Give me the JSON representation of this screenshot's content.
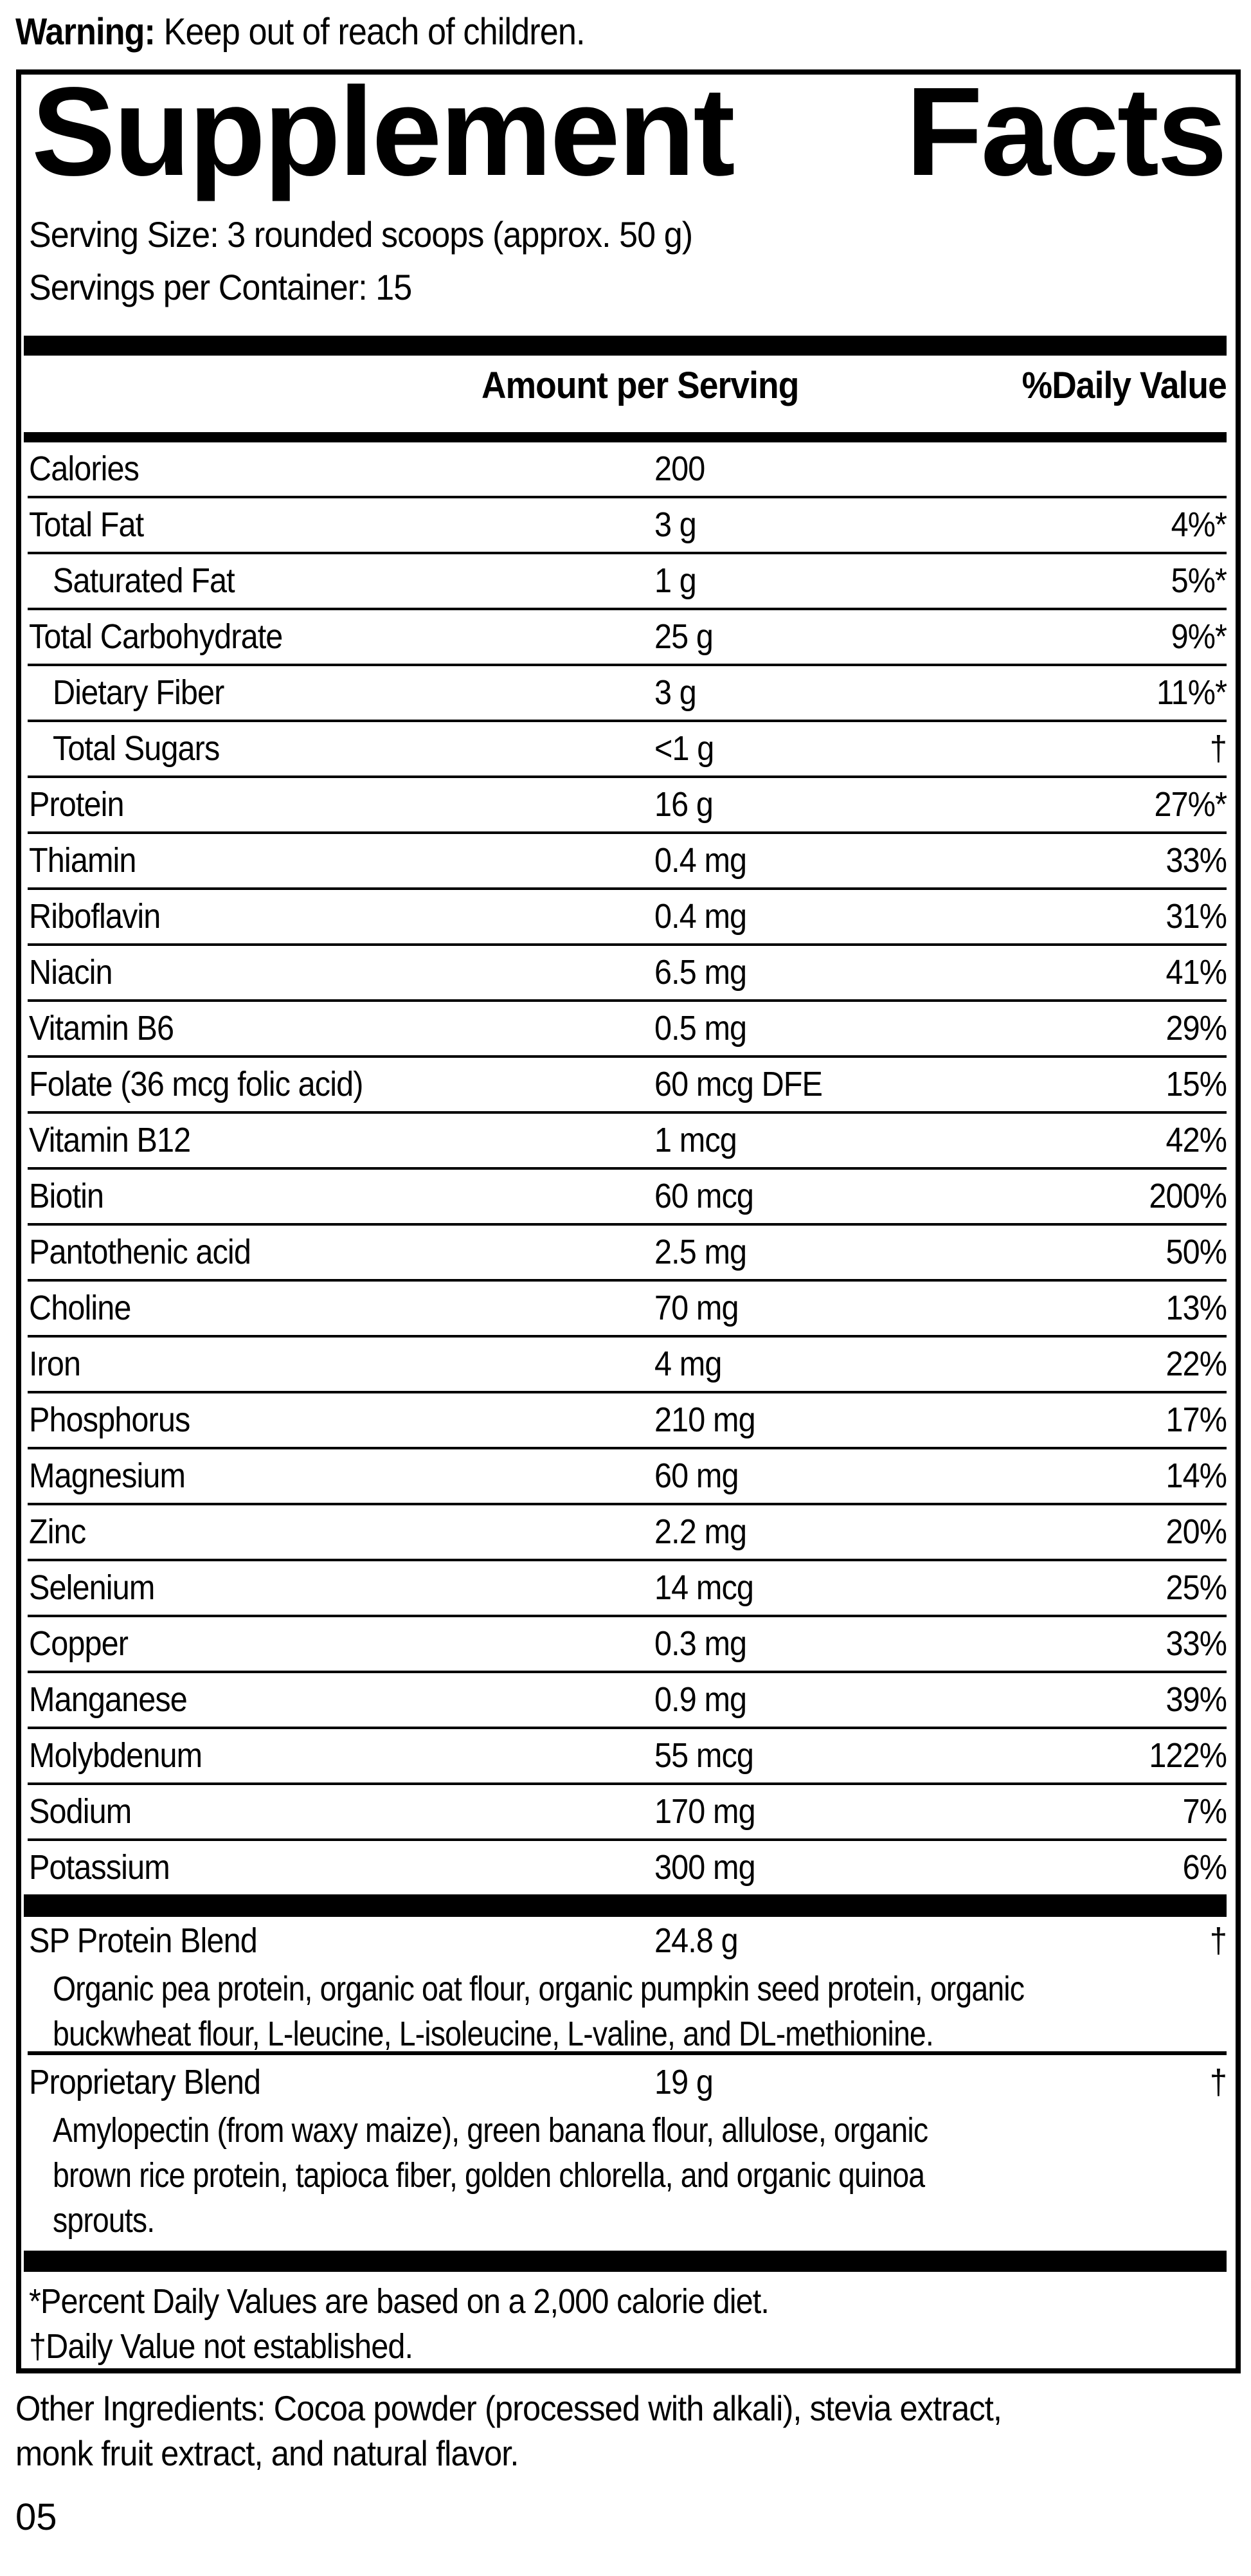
{
  "colors": {
    "text": "#000000",
    "background": "#ffffff"
  },
  "warning": {
    "label": "Warning:",
    "text": " Keep out of reach of children."
  },
  "panel": {
    "title_words": [
      "Supplement",
      "Facts"
    ],
    "serving_size": "Serving Size: 3 rounded scoops (approx. 50 g)",
    "servings_per_container": "Servings per Container: 15",
    "columns": {
      "amount": "Amount per Serving",
      "dv": "%Daily Value"
    },
    "rows": [
      {
        "name": "Calories",
        "amount": "200",
        "dv": "",
        "indent": false
      },
      {
        "name": "Total Fat",
        "amount": "3 g",
        "dv": "4%*",
        "indent": false
      },
      {
        "name": "Saturated Fat",
        "amount": "1 g",
        "dv": "5%*",
        "indent": true
      },
      {
        "name": "Total Carbohydrate",
        "amount": "25 g",
        "dv": "9%*",
        "indent": false
      },
      {
        "name": "Dietary Fiber",
        "amount": "3 g",
        "dv": "11%*",
        "indent": true
      },
      {
        "name": "Total Sugars",
        "amount": "<1 g",
        "dv": "†",
        "indent": true
      },
      {
        "name": "Protein",
        "amount": "16 g",
        "dv": "27%*",
        "indent": false
      },
      {
        "name": "Thiamin",
        "amount": "0.4 mg",
        "dv": "33%",
        "indent": false
      },
      {
        "name": "Riboflavin",
        "amount": "0.4 mg",
        "dv": "31%",
        "indent": false
      },
      {
        "name": "Niacin",
        "amount": "6.5 mg",
        "dv": "41%",
        "indent": false
      },
      {
        "name": "Vitamin B6",
        "amount": "0.5 mg",
        "dv": "29%",
        "indent": false
      },
      {
        "name": "Folate (36 mcg folic acid)",
        "amount": "60 mcg DFE",
        "dv": "15%",
        "indent": false
      },
      {
        "name": "Vitamin B12",
        "amount": "1 mcg",
        "dv": "42%",
        "indent": false
      },
      {
        "name": "Biotin",
        "amount": "60 mcg",
        "dv": "200%",
        "indent": false
      },
      {
        "name": "Pantothenic acid",
        "amount": "2.5 mg",
        "dv": "50%",
        "indent": false
      },
      {
        "name": "Choline",
        "amount": "70 mg",
        "dv": "13%",
        "indent": false
      },
      {
        "name": "Iron",
        "amount": "4 mg",
        "dv": "22%",
        "indent": false
      },
      {
        "name": "Phosphorus",
        "amount": "210 mg",
        "dv": "17%",
        "indent": false
      },
      {
        "name": "Magnesium",
        "amount": "60 mg",
        "dv": "14%",
        "indent": false
      },
      {
        "name": "Zinc",
        "amount": "2.2 mg",
        "dv": "20%",
        "indent": false
      },
      {
        "name": "Selenium",
        "amount": "14 mcg",
        "dv": "25%",
        "indent": false
      },
      {
        "name": "Copper",
        "amount": "0.3 mg",
        "dv": "33%",
        "indent": false
      },
      {
        "name": "Manganese",
        "amount": "0.9 mg",
        "dv": "39%",
        "indent": false
      },
      {
        "name": "Molybdenum",
        "amount": "55 mcg",
        "dv": "122%",
        "indent": false
      },
      {
        "name": "Sodium",
        "amount": "170 mg",
        "dv": "7%",
        "indent": false
      },
      {
        "name": "Potassium",
        "amount": "300 mg",
        "dv": "6%",
        "indent": false
      }
    ],
    "blends": [
      {
        "name": "SP Protein Blend",
        "amount": "24.8 g",
        "dv": "†",
        "lines": [
          "Organic pea protein, organic oat flour, organic pumpkin seed protein, organic",
          "buckwheat flour, L-leucine, L-isoleucine, L-valine, and DL-methionine."
        ]
      },
      {
        "name": "Proprietary Blend",
        "amount": "19 g",
        "dv": "†",
        "lines": [
          "Amylopectin (from waxy maize), green banana flour, allulose, organic",
          "brown rice protein, tapioca fiber, golden chlorella, and organic quinoa",
          "sprouts."
        ]
      }
    ],
    "footnotes": [
      "*Percent Daily Values are based on a 2,000 calorie diet.",
      "†Daily Value not established."
    ]
  },
  "other_ingredients_lines": [
    "Other Ingredients: Cocoa powder (processed with alkali), stevia extract,",
    "monk fruit extract, and natural flavor."
  ],
  "footer_code": "05"
}
